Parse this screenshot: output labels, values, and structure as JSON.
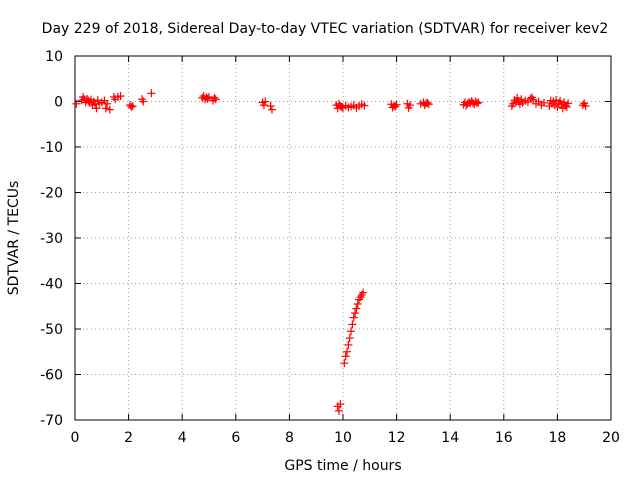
{
  "chart_data": {
    "type": "scatter",
    "title": "Day 229 of 2018, Sidereal Day-to-day VTEC variation (SDTVAR) for receiver kev2",
    "xlabel": "GPS time / hours",
    "ylabel": "SDTVAR / TECUs",
    "xlim": [
      0,
      20
    ],
    "ylim": [
      -70,
      10
    ],
    "xticks": [
      0,
      2,
      4,
      6,
      8,
      10,
      12,
      14,
      16,
      18,
      20
    ],
    "yticks": [
      10,
      0,
      -10,
      -20,
      -30,
      -40,
      -50,
      -60,
      -70
    ],
    "grid": true,
    "marker": "+",
    "series": [
      {
        "name": "SDTVAR",
        "color": "#ff0000",
        "x": [
          0.05,
          0.25,
          0.3,
          0.35,
          0.4,
          0.45,
          0.5,
          0.55,
          0.6,
          0.65,
          0.7,
          0.75,
          0.8,
          0.85,
          0.9,
          1.0,
          1.1,
          1.15,
          1.2,
          1.3,
          1.45,
          1.5,
          1.6,
          1.7,
          2.05,
          2.1,
          2.15,
          2.5,
          2.55,
          2.85,
          4.75,
          4.8,
          4.85,
          4.9,
          4.95,
          5.0,
          5.15,
          5.2,
          5.25,
          7.0,
          7.05,
          7.1,
          7.3,
          7.35,
          9.75,
          9.8,
          9.85,
          9.9,
          9.95,
          10.0,
          10.1,
          10.2,
          10.3,
          10.4,
          10.5,
          10.6,
          10.7,
          10.8,
          11.8,
          11.85,
          11.9,
          11.95,
          12.0,
          12.4,
          12.45,
          12.5,
          12.9,
          13.0,
          13.05,
          13.1,
          13.15,
          13.2,
          14.5,
          14.55,
          14.6,
          14.65,
          14.7,
          14.75,
          14.8,
          14.85,
          14.9,
          14.95,
          15.0,
          15.05,
          16.3,
          16.35,
          16.4,
          16.45,
          16.5,
          16.55,
          16.6,
          16.65,
          16.7,
          16.8,
          16.9,
          17.0,
          17.05,
          17.1,
          17.2,
          17.3,
          17.4,
          17.5,
          17.7,
          17.75,
          17.8,
          17.85,
          17.9,
          17.95,
          18.0,
          18.05,
          18.1,
          18.15,
          18.2,
          18.25,
          18.3,
          18.35,
          18.4,
          18.95,
          19.0,
          19.05,
          9.8,
          9.85,
          9.9,
          10.05,
          10.1,
          10.15,
          10.2,
          10.25,
          10.3,
          10.35,
          10.4,
          10.45,
          10.5,
          10.55,
          10.6,
          10.65,
          10.7,
          10.75
        ],
        "y": [
          -0.5,
          0.3,
          1.0,
          0.5,
          -0.2,
          0.6,
          0.2,
          -0.3,
          0.4,
          -0.8,
          0.0,
          -0.6,
          -1.5,
          0.3,
          -0.5,
          -0.2,
          0.2,
          -1.5,
          -0.5,
          -1.8,
          1.0,
          0.5,
          1.0,
          1.2,
          -0.8,
          -1.2,
          -1.0,
          0.5,
          0.0,
          1.8,
          0.8,
          1.2,
          0.5,
          0.9,
          0.6,
          1.0,
          0.2,
          0.8,
          0.5,
          -0.2,
          -0.8,
          0.0,
          -1.0,
          -1.8,
          -0.8,
          -1.5,
          -0.5,
          -1.0,
          -1.2,
          -1.4,
          -0.9,
          -1.3,
          -1.1,
          -0.8,
          -1.4,
          -1.0,
          -0.6,
          -0.9,
          -0.6,
          -1.3,
          -0.9,
          -1.1,
          -0.7,
          -0.5,
          -1.4,
          -0.8,
          -0.5,
          -0.2,
          -0.8,
          -0.4,
          -0.3,
          -0.6,
          -0.7,
          -0.2,
          -0.9,
          -0.5,
          -0.1,
          -0.4,
          0.1,
          -0.3,
          -0.6,
          0.0,
          -0.4,
          -0.2,
          -1.0,
          -0.5,
          0.3,
          -0.2,
          0.8,
          0.0,
          -0.6,
          0.5,
          -0.3,
          0.2,
          -0.1,
          0.6,
          0.9,
          0.4,
          -0.5,
          0.0,
          -0.8,
          -0.3,
          -1.0,
          0.2,
          -0.5,
          0.0,
          -0.8,
          0.3,
          -1.2,
          -0.4,
          0.1,
          -0.6,
          -1.5,
          -0.2,
          -0.9,
          -1.2,
          -0.4,
          -0.8,
          -0.4,
          -1.0,
          -67.0,
          -68.0,
          -66.5,
          -57.5,
          -56.0,
          -55.0,
          -53.5,
          -52.0,
          -50.5,
          -49.0,
          -47.5,
          -46.5,
          -45.5,
          -44.5,
          -43.5,
          -43.0,
          -42.5,
          -42.0
        ]
      }
    ]
  }
}
